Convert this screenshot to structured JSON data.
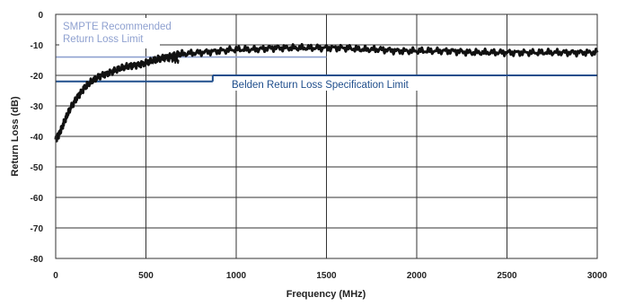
{
  "chart_data": {
    "type": "line",
    "xlabel": "Frequency (MHz)",
    "ylabel": "Return Loss (dB)",
    "xlim": [
      0,
      3000
    ],
    "ylim": [
      -80,
      0
    ],
    "xticks": [
      0,
      500,
      1000,
      1500,
      2000,
      2500,
      3000
    ],
    "yticks": [
      0,
      -10,
      -20,
      -30,
      -40,
      -50,
      -60,
      -70,
      -80
    ],
    "grid": true,
    "series": [
      {
        "name": "",
        "color": "#111111",
        "x": [
          0,
          20,
          50,
          80,
          120,
          160,
          200,
          250,
          300,
          350,
          400,
          450,
          500,
          550,
          600,
          650,
          700,
          800,
          900,
          1000,
          1100,
          1200,
          1300,
          1400,
          1500,
          1600,
          1700,
          1800,
          1900,
          2000,
          2100,
          2200,
          2300,
          2400,
          2500,
          2600,
          2700,
          2800,
          2900,
          3000
        ],
        "y": [
          -41,
          -39,
          -35,
          -31,
          -27,
          -24,
          -22,
          -20,
          -19,
          -18,
          -17,
          -16.5,
          -16,
          -15,
          -14,
          -13.5,
          -13,
          -12.5,
          -12,
          -11.5,
          -11.5,
          -11,
          -11,
          -11,
          -11,
          -11,
          -11.5,
          -11.5,
          -12,
          -12,
          -12,
          -12,
          -12.5,
          -12.5,
          -12.5,
          -12.5,
          -12.5,
          -12.5,
          -12.5,
          -12.5
        ]
      },
      {
        "name": "",
        "color": "#111111",
        "x": [
          500,
          550,
          600,
          650,
          680
        ],
        "y": [
          -15.5,
          -15,
          -14.5,
          -14.5,
          -15
        ]
      }
    ],
    "reference_lines": [
      {
        "label_lines": [
          "SMPTE Recommended",
          "Return Loss Limit"
        ],
        "color": "#8fa1d0",
        "segments": [
          {
            "x": [
              0,
              1500
            ],
            "y": -14
          }
        ]
      },
      {
        "label_lines": [
          "Belden Return Loss Specification Limit"
        ],
        "color": "#1f4e8c",
        "segments": [
          {
            "x": [
              0,
              870
            ],
            "y": -22
          },
          {
            "x": [
              870,
              870
            ],
            "y": [
              -22,
              -20
            ]
          },
          {
            "x": [
              870,
              3000
            ],
            "y": -20
          }
        ]
      }
    ]
  }
}
